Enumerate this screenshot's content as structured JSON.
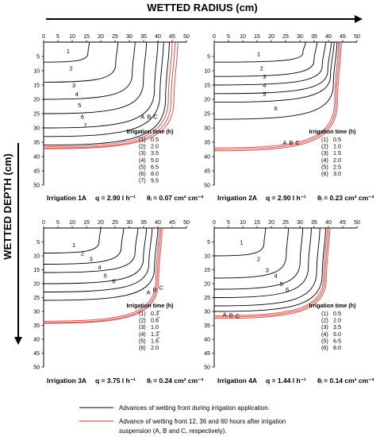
{
  "figure": {
    "x_title": "WETTED RADIUS (cm)",
    "y_title": "WETTED DEPTH (cm)",
    "legend": {
      "black_text": "Advances of wetting front during irrigation application.",
      "red_text_line1": "Advance of wetting front 12, 36 and 60 hours after irrigation",
      "red_text_line2": "suspension (A, B and C, respectively).",
      "black_color": "#000000",
      "red_color": "#d9534f"
    }
  },
  "chart_data": [
    {
      "type": "line",
      "panel": "1A",
      "caption": {
        "name": "Irrigation 1A",
        "q": "q = 2.90 l h⁻¹",
        "theta": "θᵢ = 0.07 cm³ cm⁻³"
      },
      "xlim": [
        0,
        50
      ],
      "ylim": [
        0,
        50
      ],
      "xticks": [
        "0",
        "5",
        "10",
        "15",
        "20",
        "25",
        "30",
        "35",
        "40",
        "45",
        "50"
      ],
      "yticks": [
        "5",
        "10",
        "15",
        "20",
        "25",
        "30",
        "35",
        "40",
        "45",
        "50"
      ],
      "table_title": "Irrigation time (h)",
      "table": [
        [
          "(1)",
          "0.5"
        ],
        [
          "(2)",
          "2.0"
        ],
        [
          "(3)",
          "3.5"
        ],
        [
          "(4)",
          "5.0"
        ],
        [
          "(5)",
          "6.5"
        ],
        [
          "(6)",
          "8.0"
        ],
        [
          "(7)",
          "9.5"
        ]
      ],
      "series": [
        {
          "label": "1",
          "radius": 16,
          "depth": 7
        },
        {
          "label": "2",
          "radius": 26,
          "depth": 14
        },
        {
          "label": "3",
          "radius": 32,
          "depth": 20
        },
        {
          "label": "4",
          "radius": 36,
          "depth": 25
        },
        {
          "label": "5",
          "radius": 40,
          "depth": 30
        },
        {
          "label": "6",
          "radius": 42,
          "depth": 33
        },
        {
          "label": "7",
          "radius": 44,
          "depth": 36
        }
      ],
      "after": [
        {
          "label": "A",
          "radius": 45,
          "depth": 36.5
        },
        {
          "label": "B",
          "radius": 46,
          "depth": 37
        },
        {
          "label": "C",
          "radius": 47,
          "depth": 37.3
        }
      ],
      "abc_pos": [
        34,
        26
      ],
      "curve_label_pos": [
        [
          8,
          3
        ],
        [
          9,
          9
        ],
        [
          10,
          15
        ],
        [
          11,
          18
        ],
        [
          12,
          22
        ],
        [
          13,
          26
        ],
        [
          14,
          29
        ]
      ]
    },
    {
      "type": "line",
      "panel": "2A",
      "caption": {
        "name": "Irrigation 2A",
        "q": "q = 2.90 l h⁻¹",
        "theta": "θᵢ = 0.23 cm³ cm⁻³"
      },
      "xlim": [
        0,
        50
      ],
      "ylim": [
        0,
        50
      ],
      "xticks": [
        "0",
        "5",
        "10",
        "15",
        "20",
        "25",
        "30",
        "35",
        "40",
        "45",
        "50"
      ],
      "yticks": [
        "5",
        "10",
        "15",
        "20",
        "25",
        "30",
        "35",
        "40",
        "45",
        "50"
      ],
      "table_title": "Irrigation time (h)",
      "table": [
        [
          "(1)",
          "0.5"
        ],
        [
          "(2)",
          "1.0"
        ],
        [
          "(3)",
          "1.5"
        ],
        [
          "(4)",
          "2.0"
        ],
        [
          "(5)",
          "2.5"
        ],
        [
          "(6)",
          "3.0"
        ]
      ],
      "series": [
        {
          "label": "1",
          "radius": 32,
          "depth": 7
        },
        {
          "label": "2",
          "radius": 36,
          "depth": 12
        },
        {
          "label": "3",
          "radius": 39,
          "depth": 15
        },
        {
          "label": "4",
          "radius": 41,
          "depth": 18
        },
        {
          "label": "5",
          "radius": 42,
          "depth": 21
        },
        {
          "label": "6",
          "radius": 43,
          "depth": 27
        }
      ],
      "after": [
        {
          "label": "A",
          "radius": 43.5,
          "depth": 37
        },
        {
          "label": "B",
          "radius": 44,
          "depth": 37.5
        },
        {
          "label": "C",
          "radius": 44.5,
          "depth": 38
        }
      ],
      "abc_pos": [
        24,
        35
      ],
      "curve_label_pos": [
        [
          15,
          4
        ],
        [
          16,
          9
        ],
        [
          17,
          12
        ],
        [
          17,
          15
        ],
        [
          17,
          18
        ],
        [
          21,
          23
        ]
      ]
    },
    {
      "type": "line",
      "panel": "3A",
      "caption": {
        "name": "Irrigation 3A",
        "q": "q = 3.75 l h⁻¹",
        "theta": "θᵢ = 0.24 cm³ cm⁻³"
      },
      "xlim": [
        0,
        50
      ],
      "ylim": [
        0,
        50
      ],
      "xticks": [
        "0",
        "5",
        "10",
        "15",
        "20",
        "25",
        "30",
        "35",
        "40",
        "45",
        "50"
      ],
      "yticks": [
        "5",
        "10",
        "15",
        "20",
        "25",
        "30",
        "35",
        "40",
        "45",
        "50"
      ],
      "table_title": "Irrigation time (h)",
      "table": [
        [
          "(1)",
          "0.3̅"
        ],
        [
          "(2)",
          "0.6̅"
        ],
        [
          "(3)",
          "1.0"
        ],
        [
          "(4)",
          "1.3̅"
        ],
        [
          "(5)",
          "1.6̅"
        ],
        [
          "(6)",
          "2.0"
        ]
      ],
      "series": [
        {
          "label": "1",
          "radius": 20,
          "depth": 9
        },
        {
          "label": "2",
          "radius": 28,
          "depth": 13
        },
        {
          "label": "3",
          "radius": 33,
          "depth": 16
        },
        {
          "label": "4",
          "radius": 36,
          "depth": 20
        },
        {
          "label": "5",
          "radius": 38,
          "depth": 23
        },
        {
          "label": "6",
          "radius": 40,
          "depth": 26
        }
      ],
      "after": [
        {
          "label": "A",
          "radius": 40.5,
          "depth": 33.5
        },
        {
          "label": "B",
          "radius": 41,
          "depth": 34
        },
        {
          "label": "C",
          "radius": 41.5,
          "depth": 34.3
        }
      ],
      "abc_pos": [
        36,
        23
      ],
      "curve_label_pos": [
        [
          10,
          6
        ],
        [
          13,
          9
        ],
        [
          16,
          11
        ],
        [
          19,
          14
        ],
        [
          21,
          17
        ],
        [
          24,
          19
        ]
      ]
    },
    {
      "type": "line",
      "panel": "4A",
      "caption": {
        "name": "Irrigation 4A",
        "q": "q = 1.44 l h⁻¹",
        "theta": "θᵢ = 0.14 cm³ cm⁻³"
      },
      "xlim": [
        0,
        50
      ],
      "ylim": [
        0,
        50
      ],
      "xticks": [
        "0",
        "5",
        "10",
        "15",
        "20",
        "25",
        "30",
        "35",
        "40",
        "45",
        "50"
      ],
      "yticks": [
        "5",
        "10",
        "15",
        "20",
        "25",
        "30",
        "35",
        "40",
        "45",
        "50"
      ],
      "table_title": "Irrigation time (h)",
      "table": [
        [
          "(1)",
          "0.5"
        ],
        [
          "(2)",
          "2.0"
        ],
        [
          "(3)",
          "3.5"
        ],
        [
          "(4)",
          "5.0"
        ],
        [
          "(5)",
          "6.5"
        ],
        [
          "(6)",
          "8.0"
        ]
      ],
      "series": [
        {
          "label": "1",
          "radius": 18,
          "depth": 10
        },
        {
          "label": "2",
          "radius": 26,
          "depth": 18
        },
        {
          "label": "3",
          "radius": 31,
          "depth": 22
        },
        {
          "label": "4",
          "radius": 34,
          "depth": 25
        },
        {
          "label": "5",
          "radius": 37,
          "depth": 28
        },
        {
          "label": "6",
          "radius": 39,
          "depth": 30
        }
      ],
      "after": [
        {
          "label": "A",
          "radius": 39.5,
          "depth": 31.5
        },
        {
          "label": "B",
          "radius": 40,
          "depth": 32
        },
        {
          "label": "C",
          "radius": 40.5,
          "depth": 32.5
        }
      ],
      "abc_pos": [
        3,
        31
      ],
      "curve_label_pos": [
        [
          9,
          5
        ],
        [
          15,
          11
        ],
        [
          18,
          15
        ],
        [
          21,
          17
        ],
        [
          23,
          20
        ],
        [
          25,
          22
        ]
      ]
    }
  ]
}
